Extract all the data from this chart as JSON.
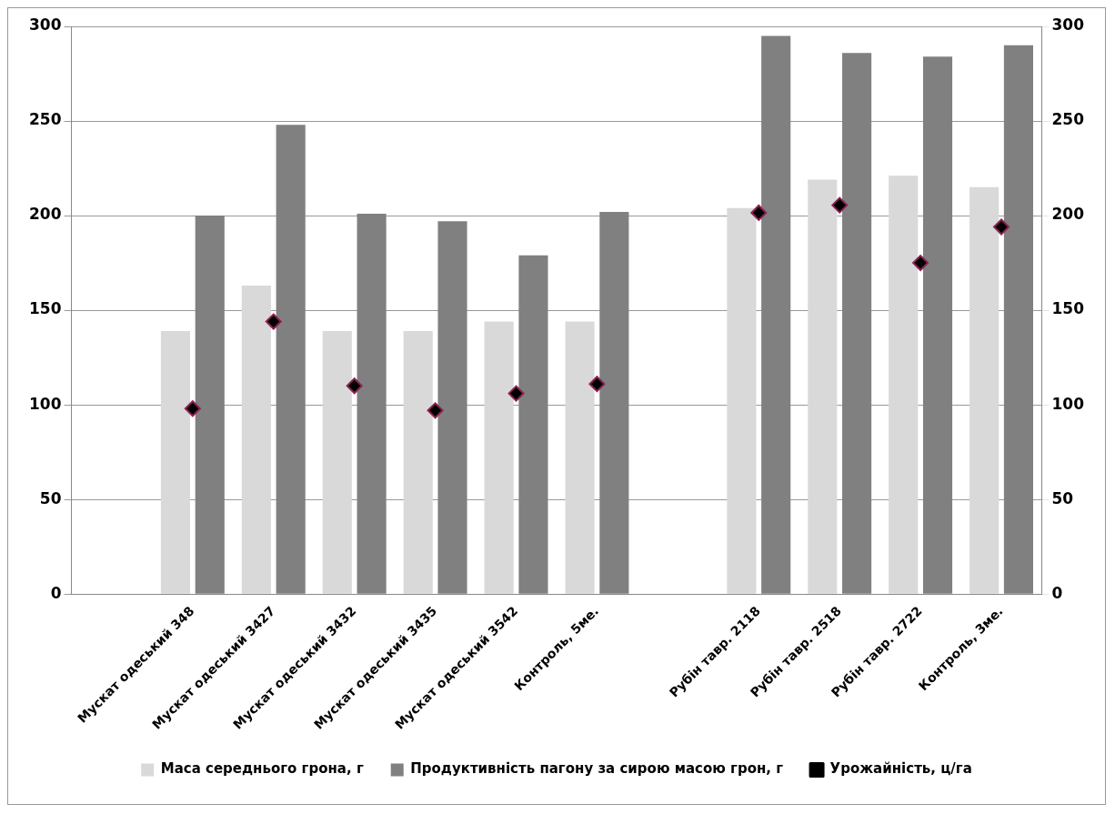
{
  "chart_data": {
    "type": "bar",
    "categories": [
      null,
      "Мускат одеський 348",
      "Мускат одеський 3427",
      "Мускат одеський 3432",
      "Мускат одеський 3435",
      "Мускат одеський 3542",
      "Контроль, 5ме.",
      null,
      "Рубін тавр. 2118",
      "Рубін тавр. 2518",
      "Рубін тавр. 2722",
      "Контроль, 3ме."
    ],
    "series": [
      {
        "name": "Маса середнього грона, г",
        "color": "#d9d9d9",
        "values": [
          null,
          139,
          163,
          139,
          139,
          144,
          144,
          null,
          204,
          219,
          221,
          215
        ]
      },
      {
        "name": "Продуктивність пагону за сирою масою грон, г",
        "color": "#808080",
        "values": [
          null,
          200,
          248,
          201,
          197,
          179,
          202,
          null,
          295,
          286,
          284,
          290
        ]
      },
      {
        "name": "Урожайність, ц/га",
        "type": "scatter",
        "marker": "diamond",
        "color": "#000000",
        "values": [
          null,
          98,
          144,
          110,
          97,
          106,
          111,
          null,
          201.5,
          205.5,
          175,
          194
        ]
      }
    ],
    "ylim": [
      0,
      300
    ],
    "yticks": [
      0,
      50,
      100,
      150,
      200,
      250,
      300
    ],
    "y2lim": [
      0,
      300
    ],
    "y2ticks": [
      0,
      50,
      100,
      150,
      200,
      250,
      300
    ],
    "grid": "y",
    "legend": "bottom"
  }
}
